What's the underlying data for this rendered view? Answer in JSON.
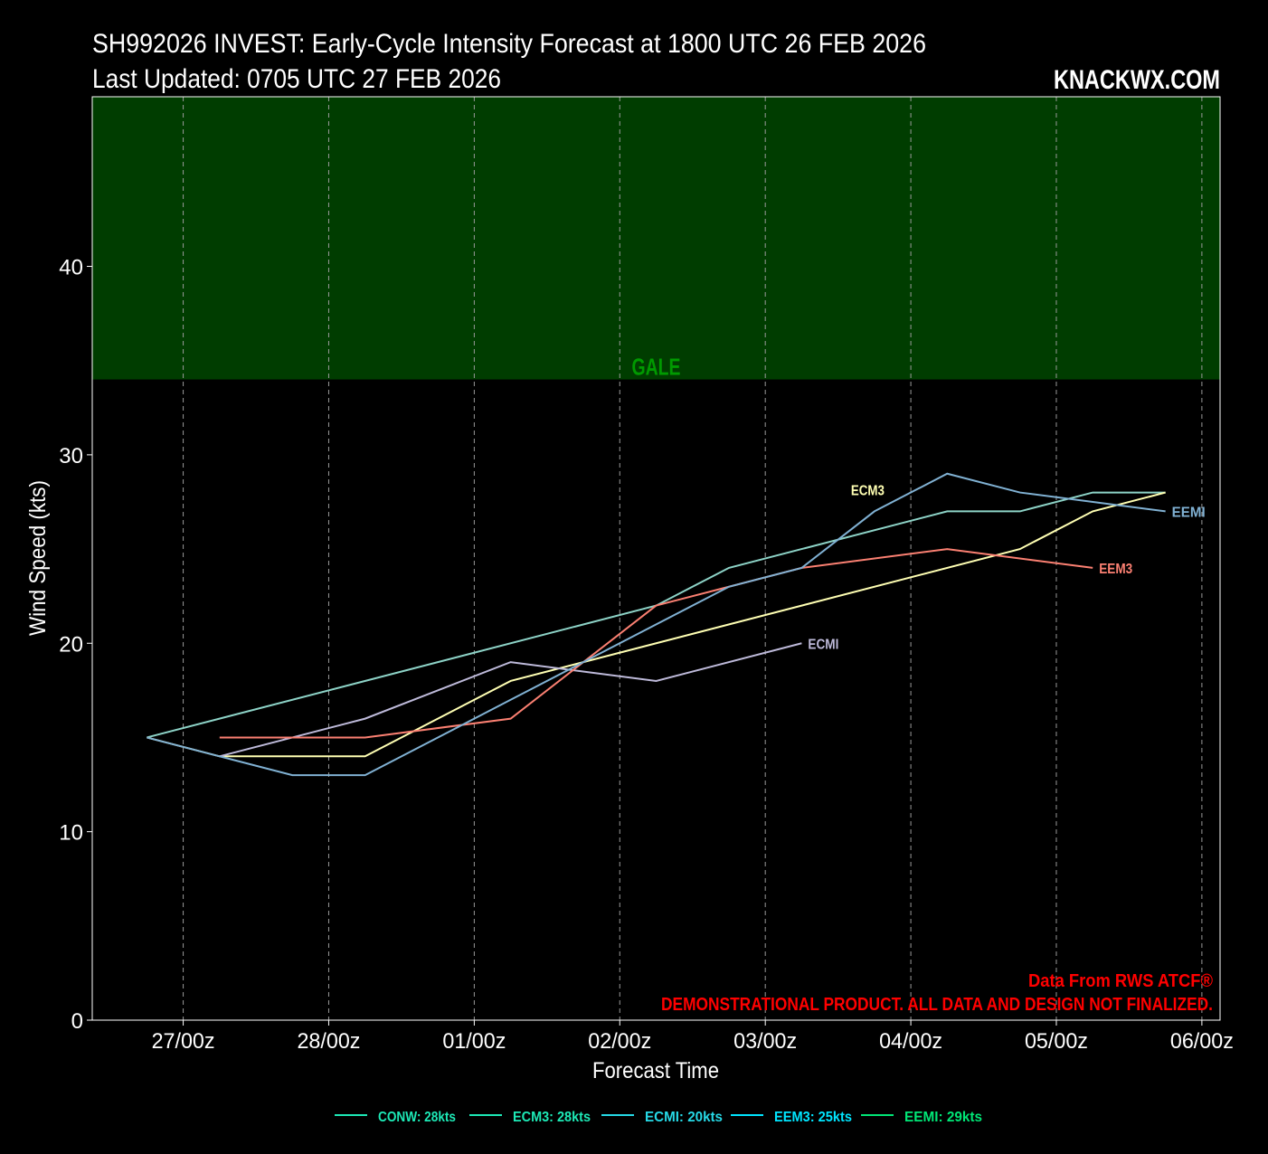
{
  "header": {
    "title": "SH992026 INVEST: Early-Cycle Intensity Forecast at 1800 UTC 26 FEB 2026",
    "updated": "Last Updated: 0705 UTC 27 FEB 2026",
    "brand": "KNACKWX.COM"
  },
  "footer": {
    "source": "Data From RWS ATCF®",
    "disclaimer": "DEMONSTRATIONAL PRODUCT. ALL DATA AND DESIGN NOT FINALIZED."
  },
  "chart_data": {
    "type": "line",
    "title": "SH992026 INVEST: Early-Cycle Intensity Forecast at 1800 UTC 26 FEB 2026",
    "xlabel": "Forecast Time",
    "ylabel": "Wind Speed (kts)",
    "x_unit": "hours after 1800 UTC 26 FEB 2026",
    "xlim": [
      -9,
      177
    ],
    "ylim": [
      0,
      49
    ],
    "grid": "vertical dashed",
    "x_ticks": [
      {
        "h": 6,
        "label": "27/00z"
      },
      {
        "h": 30,
        "label": "28/00z"
      },
      {
        "h": 54,
        "label": "01/00z"
      },
      {
        "h": 78,
        "label": "02/00z"
      },
      {
        "h": 102,
        "label": "03/00z"
      },
      {
        "h": 126,
        "label": "04/00z"
      },
      {
        "h": 150,
        "label": "05/00z"
      },
      {
        "h": 174,
        "label": "06/00z"
      }
    ],
    "y_ticks": [
      0,
      10,
      20,
      30,
      40
    ],
    "bands": [
      {
        "label": "GALE",
        "from": 34,
        "to": 49,
        "color": "#003d00",
        "label_color": "#009a00"
      }
    ],
    "series": [
      {
        "name": "CONW",
        "color": "#8dd3c7",
        "label": "",
        "x": [
          0,
          84,
          96,
          132,
          144,
          156,
          168
        ],
        "y": [
          15,
          22,
          24,
          27,
          27,
          28,
          28
        ]
      },
      {
        "name": "ECM3",
        "color": "#ffffb3",
        "label": "ECM3",
        "x": [
          0,
          12,
          36,
          60,
          144,
          156,
          168
        ],
        "y": [
          15,
          14,
          14,
          18,
          25,
          27,
          28
        ]
      },
      {
        "name": "ECMI",
        "color": "#bebada",
        "label": "ECMI",
        "x": [
          12,
          36,
          60,
          84,
          108
        ],
        "y": [
          14,
          16,
          19,
          18,
          20
        ]
      },
      {
        "name": "EEM3",
        "color": "#fb8072",
        "label": "EEM3",
        "x": [
          12,
          36,
          60,
          84,
          96,
          108,
          132,
          156
        ],
        "y": [
          15,
          15,
          16,
          22,
          23,
          24,
          25,
          24
        ]
      },
      {
        "name": "EEMI",
        "color": "#80b1d3",
        "label": "EEMI",
        "x": [
          0,
          12,
          24,
          36,
          60,
          96,
          108,
          120,
          132,
          144,
          168
        ],
        "y": [
          15,
          14,
          13,
          13,
          17,
          23,
          24,
          27,
          29,
          28,
          27
        ]
      }
    ],
    "legend": {
      "placement": "bottom-center",
      "entries": [
        {
          "text": "CONW: 28kts",
          "color": "#1de9b6"
        },
        {
          "text": "ECM3: 28kts",
          "color": "#1de9b6"
        },
        {
          "text": "ECMI: 20kts",
          "color": "#26d9e6"
        },
        {
          "text": "EEM3: 25kts",
          "color": "#00e5ff"
        },
        {
          "text": "EEMI: 29kts",
          "color": "#00e676"
        }
      ]
    }
  }
}
